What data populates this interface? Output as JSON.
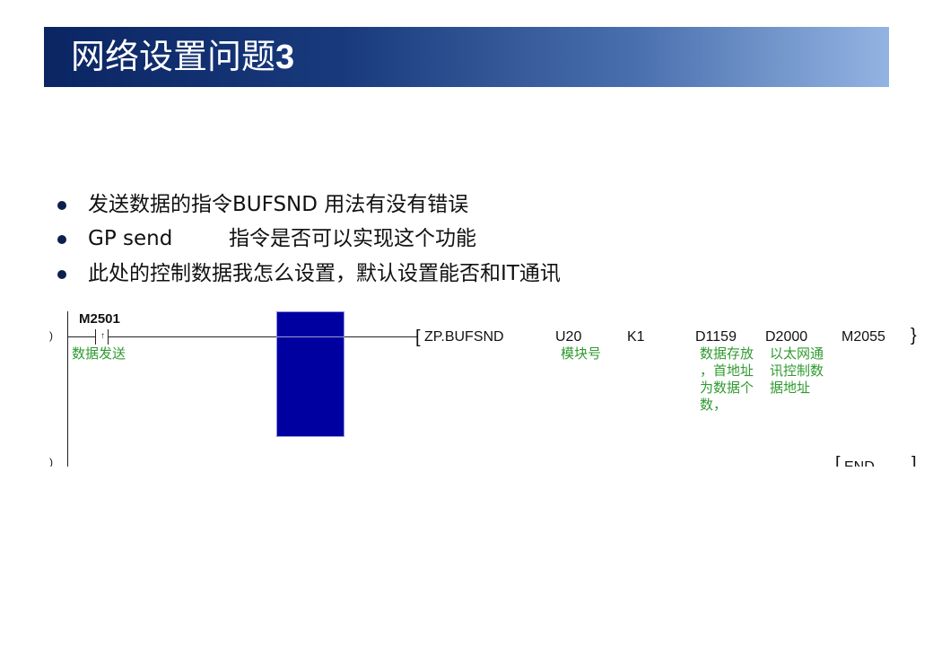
{
  "title": {
    "text": "网络设置问题",
    "num": "3"
  },
  "bullets": [
    {
      "text": "发送数据的指令BUFSND 用法有没有错误"
    },
    {
      "text": "GP send",
      "text2": "指令是否可以实现这个功能"
    },
    {
      "text": "此处的控制数据我怎么设置，默认设置能否和IT通讯"
    }
  ],
  "ladder": {
    "contact": {
      "device": "M2501",
      "comment": "数据发送",
      "type": "rising-edge"
    },
    "instruction": "ZP.BUFSND",
    "operands": [
      {
        "value": "U20",
        "comment": "模块号"
      },
      {
        "value": "K1",
        "comment": ""
      },
      {
        "value": "D1159",
        "comment": [
          "数据存放",
          "，首地址",
          "为数据个",
          "数，"
        ]
      },
      {
        "value": "D2000",
        "comment": [
          "以太网通",
          "讯控制数",
          "据地址"
        ]
      },
      {
        "value": "M2055",
        "comment": ""
      }
    ],
    "end": "END",
    "highlight_color": "#0000a0",
    "comment_color": "#2f9a2f"
  }
}
